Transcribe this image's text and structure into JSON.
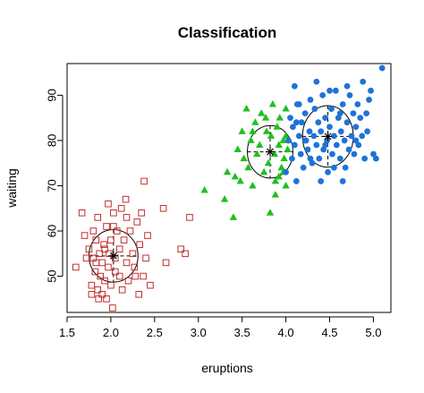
{
  "chart_data": {
    "type": "scatter",
    "title": "Classification",
    "xlabel": "eruptions",
    "ylabel": "waiting",
    "xlim": [
      1.5,
      5.2
    ],
    "ylim": [
      42,
      97
    ],
    "x_ticks": [
      "1.5",
      "2.0",
      "2.5",
      "3.0",
      "3.5",
      "4.0",
      "4.5",
      "5.0"
    ],
    "y_ticks": [
      "50",
      "60",
      "70",
      "80",
      "90"
    ],
    "grid": false,
    "legend": "none",
    "series": [
      {
        "marker": "open-square",
        "color": "#c0302e",
        "points": [
          [
            1.6,
            52
          ],
          [
            1.67,
            64
          ],
          [
            1.7,
            59
          ],
          [
            1.72,
            54
          ],
          [
            1.75,
            56
          ],
          [
            1.78,
            48
          ],
          [
            1.78,
            46
          ],
          [
            1.8,
            60
          ],
          [
            1.8,
            54
          ],
          [
            1.82,
            51
          ],
          [
            1.83,
            58
          ],
          [
            1.85,
            63
          ],
          [
            1.85,
            47
          ],
          [
            1.87,
            55
          ],
          [
            1.88,
            50
          ],
          [
            1.9,
            53
          ],
          [
            1.9,
            46
          ],
          [
            1.92,
            57
          ],
          [
            1.93,
            49
          ],
          [
            1.95,
            45
          ],
          [
            1.95,
            61
          ],
          [
            1.97,
            52
          ],
          [
            1.98,
            55
          ],
          [
            2.0,
            58
          ],
          [
            2.0,
            48
          ],
          [
            2.02,
            43
          ],
          [
            2.03,
            64
          ],
          [
            2.05,
            51
          ],
          [
            2.05,
            54
          ],
          [
            2.07,
            60
          ],
          [
            2.1,
            50
          ],
          [
            2.1,
            56
          ],
          [
            2.12,
            65
          ],
          [
            2.13,
            47
          ],
          [
            2.15,
            58
          ],
          [
            2.17,
            67
          ],
          [
            2.18,
            53
          ],
          [
            2.2,
            49
          ],
          [
            2.22,
            60
          ],
          [
            2.25,
            55
          ],
          [
            2.27,
            52
          ],
          [
            2.3,
            62
          ],
          [
            2.32,
            46
          ],
          [
            2.33,
            57
          ],
          [
            2.35,
            64
          ],
          [
            2.37,
            50
          ],
          [
            2.38,
            71
          ],
          [
            2.4,
            54
          ],
          [
            2.42,
            59
          ],
          [
            2.45,
            48
          ],
          [
            2.6,
            65
          ],
          [
            2.63,
            53
          ],
          [
            2.8,
            56
          ],
          [
            2.85,
            55
          ],
          [
            2.9,
            63
          ],
          [
            1.83,
            53
          ],
          [
            1.93,
            56
          ],
          [
            2.03,
            61
          ],
          [
            2.18,
            63
          ],
          [
            1.86,
            45
          ],
          [
            2.28,
            50
          ],
          [
            1.97,
            66
          ]
        ]
      },
      {
        "marker": "filled-triangle",
        "color": "#1fbf1f",
        "points": [
          [
            3.07,
            69
          ],
          [
            3.3,
            67
          ],
          [
            3.33,
            73
          ],
          [
            3.4,
            63
          ],
          [
            3.45,
            78
          ],
          [
            3.48,
            71
          ],
          [
            3.5,
            82
          ],
          [
            3.52,
            76
          ],
          [
            3.55,
            87
          ],
          [
            3.57,
            74
          ],
          [
            3.6,
            80
          ],
          [
            3.62,
            70
          ],
          [
            3.65,
            84
          ],
          [
            3.67,
            77
          ],
          [
            3.7,
            79
          ],
          [
            3.72,
            86
          ],
          [
            3.75,
            73
          ],
          [
            3.78,
            82
          ],
          [
            3.8,
            75
          ],
          [
            3.82,
            64
          ],
          [
            3.83,
            81
          ],
          [
            3.85,
            88
          ],
          [
            3.87,
            77
          ],
          [
            3.88,
            71
          ],
          [
            3.9,
            83
          ],
          [
            3.92,
            79
          ],
          [
            3.93,
            85
          ],
          [
            3.95,
            74
          ],
          [
            3.97,
            80
          ],
          [
            3.98,
            76
          ],
          [
            4.0,
            87
          ],
          [
            4.0,
            70
          ],
          [
            4.02,
            78
          ],
          [
            3.92,
            72
          ],
          [
            3.97,
            73
          ],
          [
            3.42,
            72
          ],
          [
            3.62,
            82
          ],
          [
            3.77,
            85
          ],
          [
            4.0,
            81
          ],
          [
            3.88,
            68
          ]
        ]
      },
      {
        "marker": "filled-circle",
        "color": "#1e73d8",
        "points": [
          [
            4.0,
            73
          ],
          [
            4.03,
            80
          ],
          [
            4.05,
            85
          ],
          [
            4.07,
            76
          ],
          [
            4.08,
            83
          ],
          [
            4.1,
            79
          ],
          [
            4.12,
            71
          ],
          [
            4.13,
            88
          ],
          [
            4.15,
            81
          ],
          [
            4.17,
            77
          ],
          [
            4.18,
            84
          ],
          [
            4.2,
            74
          ],
          [
            4.22,
            86
          ],
          [
            4.23,
            80
          ],
          [
            4.25,
            78
          ],
          [
            4.27,
            82
          ],
          [
            4.28,
            89
          ],
          [
            4.3,
            75
          ],
          [
            4.32,
            81
          ],
          [
            4.33,
            87
          ],
          [
            4.35,
            79
          ],
          [
            4.37,
            84
          ],
          [
            4.38,
            76
          ],
          [
            4.4,
            82
          ],
          [
            4.42,
            90
          ],
          [
            4.43,
            78
          ],
          [
            4.45,
            85
          ],
          [
            4.47,
            80
          ],
          [
            4.48,
            73
          ],
          [
            4.5,
            83
          ],
          [
            4.52,
            87
          ],
          [
            4.53,
            77
          ],
          [
            4.55,
            81
          ],
          [
            4.57,
            91
          ],
          [
            4.58,
            79
          ],
          [
            4.6,
            85
          ],
          [
            4.62,
            76
          ],
          [
            4.63,
            82
          ],
          [
            4.65,
            88
          ],
          [
            4.67,
            80
          ],
          [
            4.68,
            74
          ],
          [
            4.7,
            84
          ],
          [
            4.72,
            78
          ],
          [
            4.73,
            90
          ],
          [
            4.75,
            81
          ],
          [
            4.77,
            86
          ],
          [
            4.78,
            77
          ],
          [
            4.8,
            83
          ],
          [
            4.82,
            88
          ],
          [
            4.83,
            79
          ],
          [
            4.85,
            85
          ],
          [
            4.87,
            81
          ],
          [
            4.88,
            93
          ],
          [
            4.9,
            76
          ],
          [
            4.92,
            86
          ],
          [
            4.93,
            82
          ],
          [
            4.95,
            89
          ],
          [
            4.97,
            91
          ],
          [
            5.0,
            77
          ],
          [
            5.03,
            76
          ],
          [
            5.1,
            96
          ],
          [
            4.1,
            92
          ],
          [
            4.35,
            93
          ],
          [
            4.5,
            91
          ],
          [
            4.7,
            92
          ],
          [
            4.12,
            84
          ],
          [
            4.28,
            76
          ],
          [
            4.45,
            79
          ],
          [
            4.62,
            86
          ],
          [
            4.8,
            80
          ],
          [
            4.22,
            80
          ],
          [
            4.55,
            74
          ],
          [
            4.4,
            71
          ],
          [
            4.65,
            71
          ],
          [
            4.15,
            88
          ]
        ]
      }
    ],
    "centers": [
      {
        "x": 2.03,
        "y": 54.5,
        "color": "#000000"
      },
      {
        "x": 3.82,
        "y": 77.5,
        "color": "#000000"
      },
      {
        "x": 4.48,
        "y": 80.9,
        "color": "#000000"
      }
    ],
    "ellipses": [
      {
        "cx": 2.03,
        "cy": 54.5,
        "rx": 0.28,
        "ry": 5.8
      },
      {
        "cx": 3.82,
        "cy": 77.5,
        "rx": 0.26,
        "ry": 5.8
      },
      {
        "cx": 4.48,
        "cy": 80.9,
        "rx": 0.29,
        "ry": 6.8
      }
    ]
  }
}
